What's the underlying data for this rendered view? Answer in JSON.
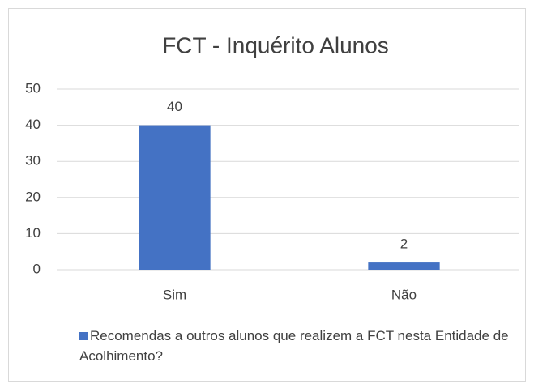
{
  "chart_data": {
    "type": "bar",
    "title": "FCT - Inquérito Alunos",
    "categories": [
      "Sim",
      "Não"
    ],
    "series": [
      {
        "name": "Recomendas a outros alunos que realizem a FCT nesta Entidade de Acolhimento?",
        "color": "#4472c4",
        "values": [
          40,
          2
        ]
      }
    ],
    "ylim": [
      0,
      50
    ],
    "yticks": [
      0,
      10,
      20,
      30,
      40,
      50
    ],
    "grid": true,
    "legend": "bottom"
  }
}
